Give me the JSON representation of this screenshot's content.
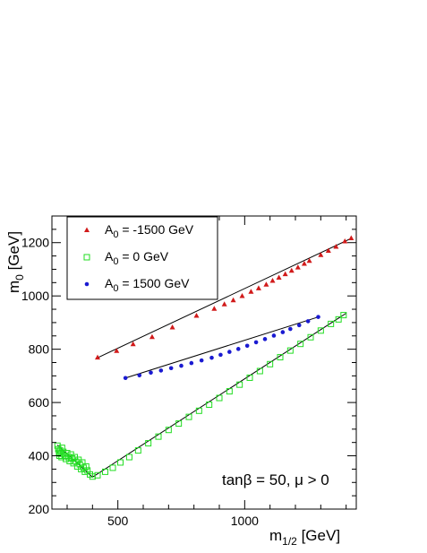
{
  "chart_data": {
    "type": "scatter",
    "xlabel": "m_{1/2} [GeV]",
    "ylabel": "m_{0} [GeV]",
    "xlim": [
      240,
      1440
    ],
    "ylim": [
      200,
      1300
    ],
    "xticks": [
      500,
      1000
    ],
    "yticks": [
      200,
      400,
      600,
      800,
      1000,
      1200
    ],
    "annotation": "tanβ = 50, μ > 0",
    "legend_position": "top-left",
    "grid": false,
    "series": [
      {
        "name": "A_0 = -1500 GeV",
        "marker": "triangle",
        "color": "#d11a1a",
        "x": [
          420,
          495,
          560,
          635,
          715,
          810,
          880,
          920,
          955,
          990,
          1025,
          1055,
          1085,
          1110,
          1135,
          1160,
          1185,
          1210,
          1235,
          1255,
          1300,
          1330,
          1360,
          1395,
          1420
        ],
        "y": [
          768,
          793,
          818,
          845,
          881,
          925,
          951,
          968,
          983,
          999,
          1015,
          1028,
          1042,
          1056,
          1068,
          1081,
          1094,
          1106,
          1120,
          1131,
          1153,
          1169,
          1184,
          1204,
          1216
        ],
        "fit_x": [
          420,
          1420
        ],
        "fit_y": [
          768,
          1216
        ]
      },
      {
        "name": "A_0 = 0 GeV",
        "marker": "open-square",
        "color": "#22dd22",
        "x": [
          262,
          265,
          268,
          270,
          272,
          275,
          278,
          280,
          285,
          290,
          295,
          300,
          305,
          310,
          315,
          320,
          325,
          330,
          335,
          340,
          345,
          350,
          355,
          360,
          365,
          370,
          375,
          380,
          390,
          400,
          420,
          450,
          480,
          510,
          545,
          580,
          620,
          660,
          700,
          740,
          780,
          820,
          860,
          900,
          940,
          980,
          1020,
          1060,
          1100,
          1140,
          1180,
          1220,
          1260,
          1300,
          1340,
          1370,
          1390
        ],
        "y": [
          438,
          425,
          412,
          400,
          420,
          408,
          395,
          430,
          415,
          400,
          388,
          410,
          395,
          380,
          405,
          390,
          372,
          395,
          378,
          360,
          385,
          368,
          350,
          375,
          355,
          340,
          360,
          345,
          330,
          322,
          327,
          340,
          355,
          375,
          395,
          420,
          447,
          472,
          497,
          521,
          546,
          569,
          592,
          617,
          642,
          667,
          693,
          718,
          744,
          770,
          795,
          820,
          845,
          870,
          895,
          912,
          928
        ],
        "fit_x": [
          262,
          400,
          1400
        ],
        "fit_y": [
          440,
          320,
          935
        ]
      },
      {
        "name": "A_0 = 1500 GeV",
        "marker": "filled-circle",
        "color": "#1a1ad1",
        "x": [
          530,
          585,
          630,
          670,
          710,
          750,
          790,
          830,
          870,
          905,
          940,
          975,
          1010,
          1045,
          1080,
          1115,
          1150,
          1180,
          1215,
          1250,
          1290
        ],
        "y": [
          692,
          702,
          712,
          720,
          729,
          738,
          748,
          758,
          768,
          779,
          790,
          801,
          813,
          826,
          838,
          851,
          864,
          876,
          890,
          905,
          921
        ],
        "fit_x": [
          530,
          1290
        ],
        "fit_y": [
          692,
          921
        ]
      }
    ]
  }
}
